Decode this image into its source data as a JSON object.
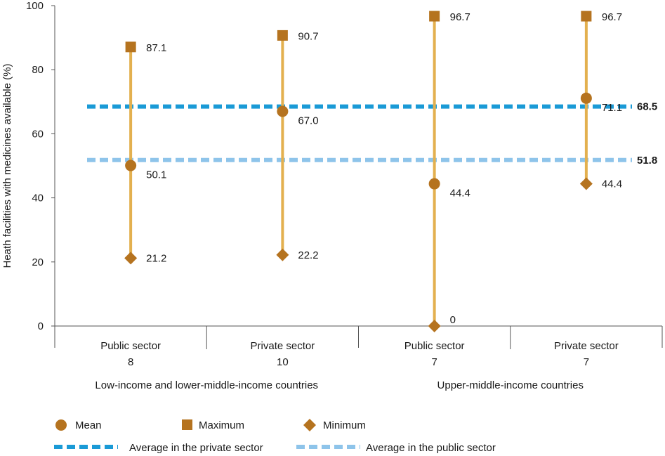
{
  "chart_data": {
    "type": "range",
    "ylabel": "Heath facilities with medicines available (%)",
    "ylim": [
      0,
      100
    ],
    "yticks": [
      "0",
      "20",
      "40",
      "60",
      "80",
      "100"
    ],
    "groups": [
      {
        "label": "Low-income and lower-middle-income countries",
        "span": [
          0,
          1
        ]
      },
      {
        "label": "Upper-middle-income countries",
        "span": [
          2,
          3
        ]
      }
    ],
    "categories": [
      {
        "name": "Public sector",
        "n": "8",
        "mean": 50.1,
        "max": 87.1,
        "min": 21.2,
        "mean_label": "50.1",
        "max_label": "87.1",
        "min_label": "21.2"
      },
      {
        "name": "Private sector",
        "n": "10",
        "mean": 67.0,
        "max": 90.7,
        "min": 22.2,
        "mean_label": "67.0",
        "max_label": "90.7",
        "min_label": "22.2"
      },
      {
        "name": "Public sector",
        "n": "7",
        "mean": 44.4,
        "max": 96.7,
        "min": 0,
        "mean_label": "44.4",
        "max_label": "96.7",
        "min_label": "0"
      },
      {
        "name": "Private sector",
        "n": "7",
        "mean": 71.1,
        "max": 96.7,
        "min": 44.4,
        "mean_label": "71.1",
        "max_label": "96.7",
        "min_label": "44.4"
      }
    ],
    "averages": [
      {
        "name": "Average in the private sector",
        "value": 68.5,
        "label": "68.5",
        "color": "#1a9ad6"
      },
      {
        "name": "Average in the public sector",
        "value": 51.8,
        "label": "51.8",
        "color": "#8ec4ea"
      }
    ],
    "legend": [
      {
        "name": "Mean",
        "marker": "circle"
      },
      {
        "name": "Maximum",
        "marker": "square"
      },
      {
        "name": "Minimum",
        "marker": "diamond"
      }
    ],
    "colors": {
      "marker": "#b5731f",
      "range_line": "#e3b04f",
      "axis": "#555555"
    }
  }
}
